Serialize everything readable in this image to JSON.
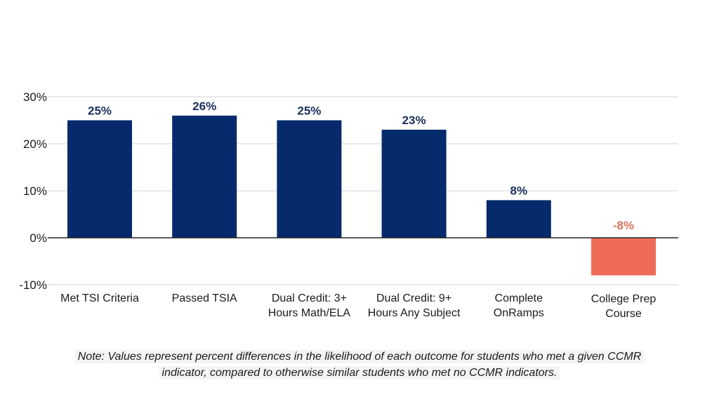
{
  "chart_data": {
    "type": "bar",
    "categories": [
      [
        "Met TSI Criteria"
      ],
      [
        "Passed TSIA"
      ],
      [
        "Dual Credit: 3+",
        "Hours Math/ELA"
      ],
      [
        "Dual Credit: 9+",
        "Hours Any Subject"
      ],
      [
        "Complete",
        "OnRamps"
      ],
      [
        "College Prep",
        "Course"
      ]
    ],
    "values": [
      25,
      26,
      25,
      23,
      8,
      -8
    ],
    "value_labels": [
      "25%",
      "26%",
      "25%",
      "23%",
      "8%",
      "-8%"
    ],
    "ylim": [
      -10,
      30
    ],
    "yticks": [
      -10,
      0,
      10,
      20,
      30
    ],
    "ytick_labels": [
      "-10%",
      "0%",
      "10%",
      "20%",
      "30%"
    ],
    "grid": true,
    "colors": {
      "positive_bar": "#062a6b",
      "negative_bar": "#ee6b58",
      "positive_label": "#1c2f5e",
      "negative_label": "#e0705e",
      "grid": "#dcdcdc",
      "zero_line": "#222222"
    }
  },
  "note": {
    "line1": "Note: Values represent percent differences in the likelihood of each outcome for students who met a given CCMR",
    "line2": "indicator, compared to otherwise similar students who met no CCMR indicators."
  }
}
